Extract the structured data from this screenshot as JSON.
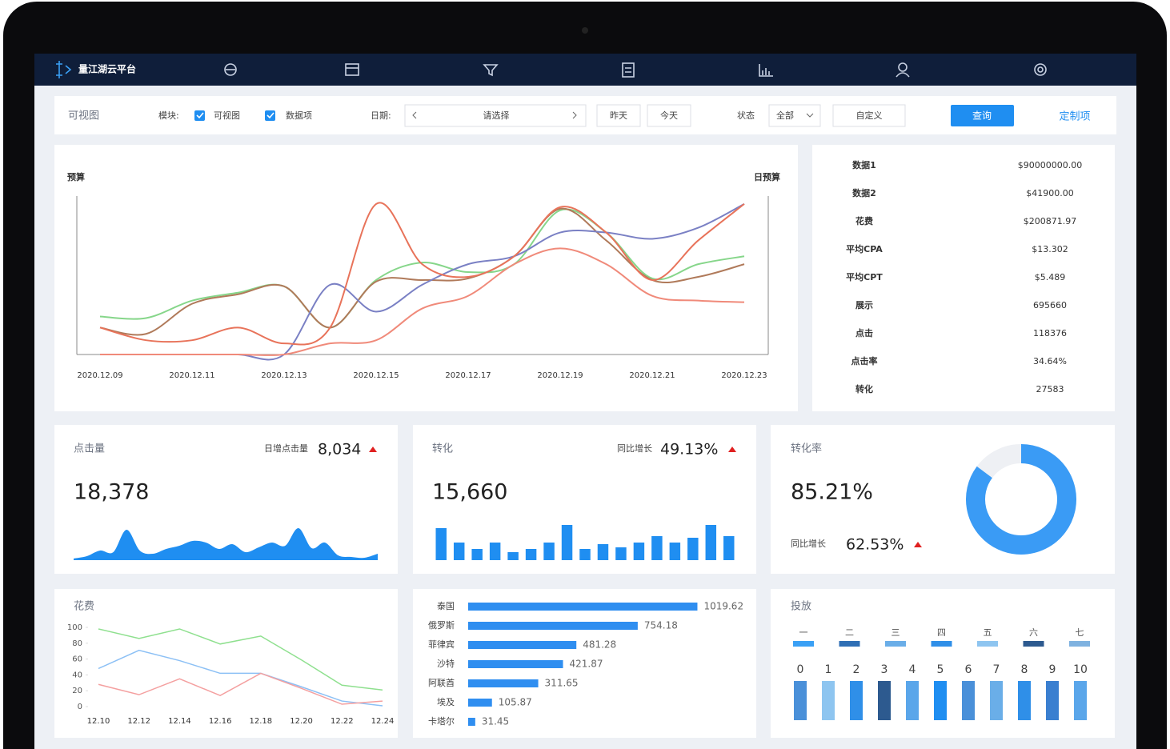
{
  "nav": {
    "brand": "量江湖云平台"
  },
  "toolbar": {
    "title": "可视图",
    "module_label": "模块:",
    "checkboxes": [
      "可视图",
      "数据项"
    ],
    "date_label": "日期:",
    "date_placeholder": "请选择",
    "quick_dates": [
      "昨天",
      "今天"
    ],
    "status_label": "状态",
    "status_value": "全部",
    "custom": "自定义",
    "query": "查询",
    "customize": "定制项"
  },
  "stats": [
    [
      "数据1",
      "$90000000.00"
    ],
    [
      "数据2",
      "$41900.00"
    ],
    [
      "花费",
      "$200871.97"
    ],
    [
      "平均CPA",
      "$13.302"
    ],
    [
      "平均CPT",
      "$5.489"
    ],
    [
      "展示",
      "695660"
    ],
    [
      "点击",
      "118376"
    ],
    [
      "点击率",
      "34.64%"
    ],
    [
      "转化",
      "27583"
    ]
  ],
  "cards": [
    {
      "title": "点击量",
      "sub_label": "日增点击量",
      "sub_value": "8,034",
      "main": "18,378"
    },
    {
      "title": "转化",
      "sub_label": "同比增长",
      "sub_value": "49.13%",
      "main": "15,660"
    },
    {
      "title": "转化率",
      "main": "85.21%",
      "sub_label": "同比增长",
      "sub_value": "62.53%"
    }
  ],
  "placement": {
    "title": "投放",
    "days": [
      "一",
      "二",
      "三",
      "四",
      "五",
      "六",
      "七"
    ],
    "day_colors": [
      "#3aa0f5",
      "#2f6fb5",
      "#6aaee8",
      "#2f8fe8",
      "#8ec5f0",
      "#2d5a8f",
      "#7fb2e0"
    ],
    "slots": [
      "0",
      "1",
      "2",
      "3",
      "4",
      "5",
      "6",
      "7",
      "8",
      "9",
      "10"
    ],
    "slot_colors": [
      "#4a90d9",
      "#8ec5f0",
      "#2f8fe8",
      "#2d5a8f",
      "#5aa6ea",
      "#1f8ef1",
      "#4a90d9",
      "#6aaee8",
      "#2f8fe8",
      "#3a7fd0",
      "#5aa6ea"
    ]
  },
  "chart_data": [
    {
      "type": "line",
      "y_label": "预算",
      "y2_label": "日预算",
      "categories": [
        "2020.12.09",
        null,
        "2020.12.11",
        null,
        "2020.12.13",
        null,
        "2020.12.15",
        null,
        "2020.12.17",
        null,
        "2020.12.19",
        null,
        "2020.12.21",
        null,
        "2020.12.23"
      ],
      "ylim": [
        0,
        100
      ],
      "series": [
        {
          "color": "#86d68a",
          "values": [
            24,
            23,
            34,
            39,
            43,
            17,
            47,
            58,
            52,
            57,
            91,
            77,
            48,
            57,
            62
          ]
        },
        {
          "color": "#b07a5a",
          "values": [
            17,
            13,
            32,
            38,
            43,
            17,
            46,
            47,
            48,
            62,
            92,
            72,
            47,
            49,
            57
          ]
        },
        {
          "color": "#7a80c4",
          "values": [
            0,
            0,
            0,
            0,
            0,
            44,
            27,
            44,
            57,
            62,
            77,
            77,
            73,
            80,
            95
          ]
        },
        {
          "color": "#e8735a",
          "values": [
            17,
            9,
            9,
            17,
            7,
            17,
            95,
            57,
            49,
            62,
            93,
            77,
            47,
            72,
            95
          ]
        },
        {
          "color": "#f08a7a",
          "values": [
            0,
            0,
            0,
            0,
            0,
            7,
            9,
            29,
            37,
            57,
            67,
            57,
            37,
            34,
            33
          ]
        }
      ]
    },
    {
      "type": "area",
      "color": "#1f8ef1",
      "ylim": [
        0,
        45
      ],
      "values": [
        2,
        5,
        12,
        10,
        38,
        12,
        8,
        14,
        18,
        24,
        22,
        14,
        20,
        10,
        16,
        22,
        18,
        40,
        15,
        22,
        6,
        4,
        3,
        8
      ]
    },
    {
      "type": "bar",
      "color": "#1f8ef1",
      "ylim": [
        0,
        50
      ],
      "values": [
        40,
        22,
        14,
        22,
        10,
        14,
        22,
        44,
        14,
        20,
        16,
        22,
        30,
        22,
        28,
        44,
        30
      ]
    },
    {
      "type": "donut",
      "colors": [
        "#3a9bf5",
        "#eef0f4"
      ],
      "values": [
        85.21,
        14.79
      ]
    },
    {
      "type": "line",
      "title": "花费",
      "categories": [
        "12.10",
        "12.12",
        "12.14",
        "12.16",
        "12.18",
        "12.20",
        "12.22",
        "12.24"
      ],
      "ylim": [
        0,
        100
      ],
      "yticks": [
        0,
        20,
        40,
        60,
        80,
        100
      ],
      "series": [
        {
          "color": "#8fe08f",
          "values": [
            98,
            86,
            98,
            79,
            89,
            59,
            27,
            21
          ]
        },
        {
          "color": "#8cc0f5",
          "values": [
            48,
            71,
            58,
            42,
            42,
            25,
            7,
            1
          ]
        },
        {
          "color": "#f4a0a0",
          "values": [
            28,
            15,
            35,
            14,
            42,
            23,
            3,
            7
          ]
        }
      ]
    },
    {
      "type": "hbar",
      "color": "#2f8ef0",
      "xlim": [
        0,
        1050
      ],
      "categories": [
        "泰国",
        "俄罗斯",
        "菲律宾",
        "沙特",
        "阿联酋",
        "埃及",
        "卡塔尔"
      ],
      "values": [
        1019.62,
        754.18,
        481.28,
        421.87,
        311.65,
        105.87,
        31.45
      ]
    }
  ]
}
